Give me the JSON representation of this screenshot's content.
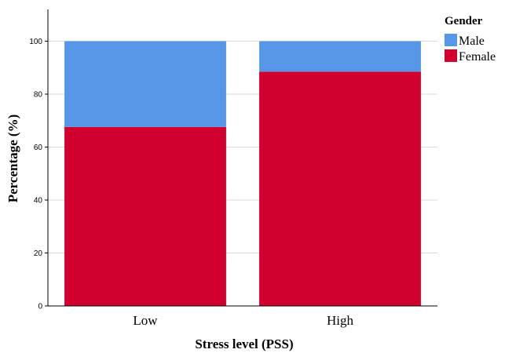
{
  "chart_data": {
    "type": "bar",
    "stacked": true,
    "xlabel": "Stress level (PSS)",
    "ylabel": "Percentage (%)",
    "ylim": [
      0,
      112
    ],
    "yticks": [
      0,
      20,
      40,
      60,
      80,
      100
    ],
    "grid": "horizontal",
    "categories": [
      "Low",
      "High"
    ],
    "series": [
      {
        "name": "Female",
        "color": "#d1002e",
        "values": [
          67.6,
          88.5
        ]
      },
      {
        "name": "Male",
        "color": "#5597e6",
        "values": [
          32.4,
          11.5
        ]
      }
    ],
    "legend": {
      "title": "Gender",
      "position": "top-right",
      "order": [
        "Male",
        "Female"
      ]
    }
  }
}
